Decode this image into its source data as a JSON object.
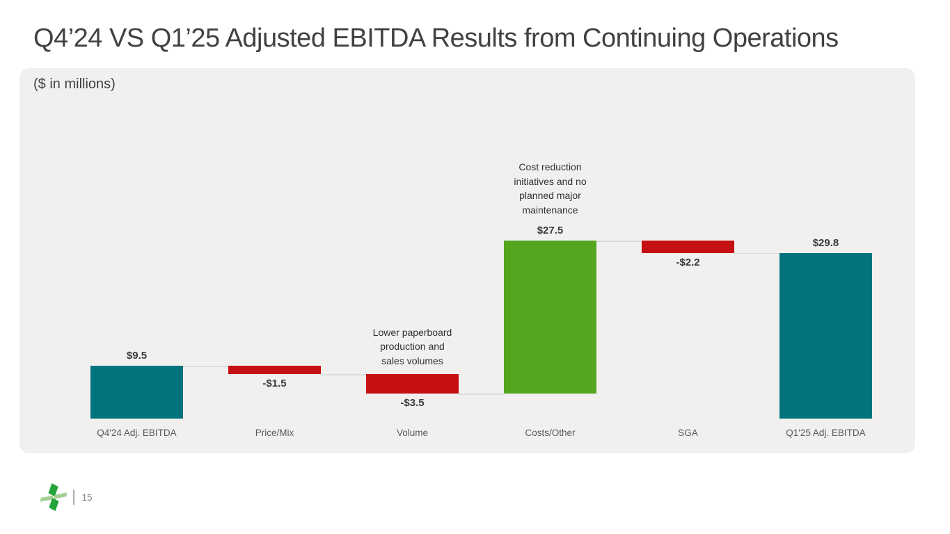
{
  "slide": {
    "title": "Q4’24 VS Q1’25 Adjusted EBITDA Results from Continuing Operations",
    "units_note": "($ in millions)"
  },
  "chart_data": {
    "type": "bar",
    "subtype": "waterfall",
    "title": "Q4’24 VS Q1’25 Adjusted EBITDA Results from Continuing Operations",
    "units": "$ in millions",
    "categories": [
      "Q4'24 Adj. EBITDA",
      "Price/Mix",
      "Volume",
      "Costs/Other",
      "SGA",
      "Q1'25 Adj. EBITDA"
    ],
    "values": [
      9.5,
      -1.5,
      -3.5,
      27.5,
      -2.2,
      29.8
    ],
    "bar_roles": [
      "total",
      "delta",
      "delta",
      "delta",
      "delta",
      "total"
    ],
    "value_labels": [
      "$9.5",
      "-$1.5",
      "-$3.5",
      "$27.5",
      "-$2.2",
      "$29.8"
    ],
    "annotations": [
      {
        "index": 2,
        "category": "Volume",
        "text": "Lower paperboard\nproduction and\nsales volumes"
      },
      {
        "index": 3,
        "category": "Costs/Other",
        "text": "Cost reduction\ninitiatives and no\nplanned major\nmaintenance"
      }
    ],
    "colors": {
      "total": "#00737d",
      "increase": "#56a51e",
      "decrease": "#c50f12",
      "connector": "#dcdcdc"
    },
    "ylim": [
      0,
      34
    ],
    "grid": false,
    "legend": false
  },
  "footer": {
    "page_number": "15",
    "logo_colors": {
      "dark_green": "#23a338",
      "light_green": "#a3d095"
    }
  }
}
